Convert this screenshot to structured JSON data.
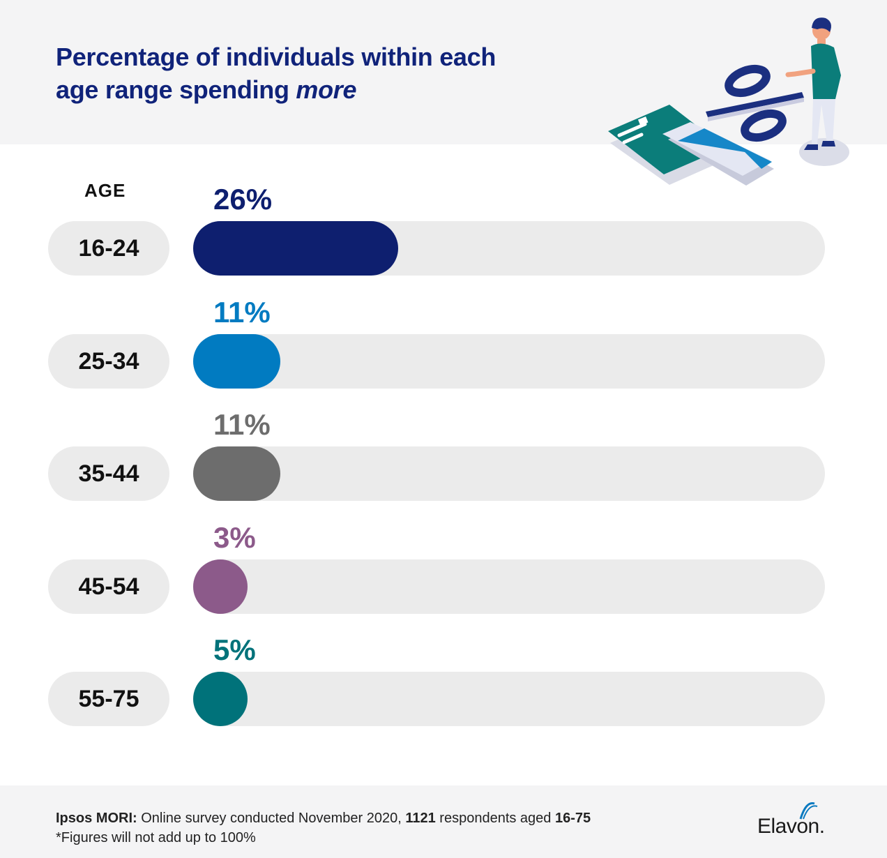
{
  "title": {
    "line1": "Percentage of individuals within each",
    "line2_plain": "age range spending ",
    "line2_italic": "more"
  },
  "age_heading": "AGE",
  "chart_data": {
    "type": "bar",
    "orientation": "horizontal",
    "title": "Percentage of individuals within each age range spending more",
    "ylabel": "AGE",
    "xlim": [
      0,
      100
    ],
    "categories": [
      "16-24",
      "25-34",
      "35-44",
      "45-54",
      "55-75"
    ],
    "values": [
      26,
      11,
      11,
      3,
      5
    ],
    "value_labels": [
      "26%",
      "11%",
      "11%",
      "3%",
      "5%"
    ],
    "colors": [
      "#0e1f6f",
      "#017bc1",
      "#6d6d6d",
      "#8c5a8a",
      "#00727a"
    ],
    "grid": false,
    "legend": "none"
  },
  "footer": {
    "source_bold": "Ipsos MORI:",
    "source_text1": " Online survey conducted November 2020, ",
    "source_count": "1121",
    "source_text2": " respondents aged ",
    "source_ages": "16-75",
    "note": "*Figures will not add up to 100%"
  },
  "logo": {
    "text": "Elavon."
  },
  "icons": [
    "person-icon",
    "percent-icon",
    "credit-card-icon"
  ]
}
